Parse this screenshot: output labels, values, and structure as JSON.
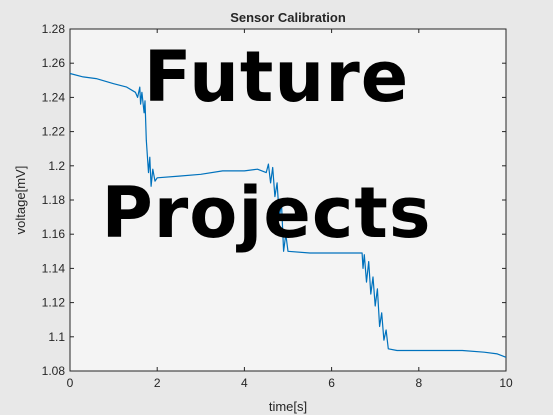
{
  "overlay": {
    "line1": "Future",
    "line2": "Projects"
  },
  "chart_data": {
    "type": "line",
    "title": "Sensor Calibration",
    "xlabel": "time[s]",
    "ylabel": "voltage[mV]",
    "xlim": [
      0,
      10
    ],
    "ylim": [
      1.08,
      1.28
    ],
    "xticks": [
      0,
      2,
      4,
      6,
      8,
      10
    ],
    "xtick_labels": [
      "0",
      "2",
      "4",
      "6",
      "8",
      "10"
    ],
    "yticks": [
      1.08,
      1.1,
      1.12,
      1.14,
      1.16,
      1.18,
      1.2,
      1.22,
      1.24,
      1.26,
      1.28
    ],
    "ytick_labels": [
      "1.08",
      "1.1",
      "1.12",
      "1.14",
      "1.16",
      "1.18",
      "1.2",
      "1.22",
      "1.24",
      "1.26",
      "1.28"
    ],
    "grid": false,
    "line_color": "#0072bd",
    "series": [
      {
        "x": [
          0,
          0.3,
          0.6,
          1.0,
          1.3,
          1.5,
          1.55,
          1.6,
          1.62,
          1.65,
          1.7,
          1.72,
          1.75,
          1.8,
          1.83,
          1.86,
          1.9,
          1.95,
          2.0,
          2.5,
          3.0,
          3.5,
          4.0,
          4.3,
          4.5,
          4.55,
          4.6,
          4.65,
          4.7,
          4.75,
          4.8,
          4.85,
          4.9,
          4.95,
          5.0,
          5.5,
          6.0,
          6.5,
          6.6,
          6.7,
          6.72,
          6.75,
          6.8,
          6.85,
          6.9,
          6.95,
          7.0,
          7.05,
          7.1,
          7.15,
          7.2,
          7.25,
          7.3,
          7.5,
          8.0,
          8.5,
          9.0,
          9.5,
          9.8,
          9.9,
          10.0
        ],
        "y": [
          1.254,
          1.252,
          1.251,
          1.248,
          1.246,
          1.243,
          1.24,
          1.246,
          1.236,
          1.243,
          1.231,
          1.238,
          1.215,
          1.196,
          1.205,
          1.188,
          1.198,
          1.191,
          1.193,
          1.194,
          1.195,
          1.197,
          1.197,
          1.198,
          1.196,
          1.201,
          1.19,
          1.199,
          1.182,
          1.19,
          1.17,
          1.178,
          1.15,
          1.16,
          1.15,
          1.149,
          1.149,
          1.149,
          1.149,
          1.149,
          1.14,
          1.148,
          1.132,
          1.144,
          1.125,
          1.135,
          1.118,
          1.128,
          1.106,
          1.114,
          1.098,
          1.104,
          1.093,
          1.092,
          1.092,
          1.092,
          1.092,
          1.091,
          1.09,
          1.089,
          1.088
        ]
      }
    ]
  }
}
